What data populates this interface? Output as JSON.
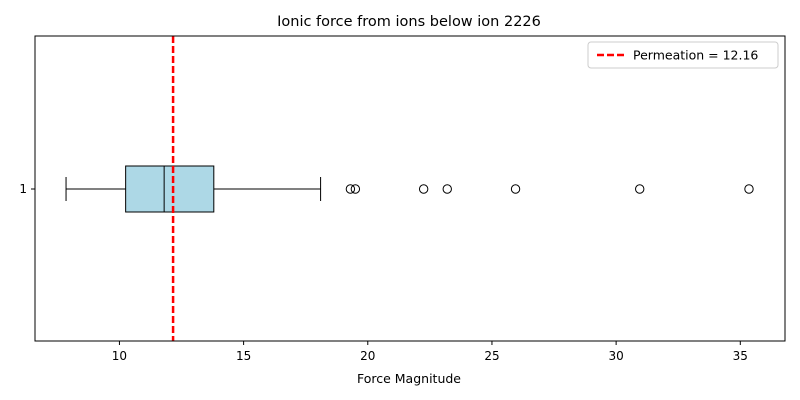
{
  "chart_data": {
    "type": "boxplot",
    "orientation": "horizontal",
    "title": "Ionic force from ions below ion 2226",
    "xlabel": "Force Magnitude",
    "ylabel": "",
    "xlim": [
      6.6,
      36.8
    ],
    "xticks": [
      10,
      15,
      20,
      25,
      30,
      35
    ],
    "ytick_labels": [
      "1"
    ],
    "grid": false,
    "legend_position": "top-right",
    "box": {
      "category": "1",
      "whisker_low": 7.85,
      "q1": 10.25,
      "median": 11.8,
      "q3": 13.8,
      "whisker_high": 18.1,
      "fliers": [
        19.3,
        19.5,
        22.25,
        23.2,
        25.95,
        30.95,
        35.35
      ],
      "fill_color": "#add8e6",
      "edge_color": "#000000"
    },
    "reference_line": {
      "label": "Permeation = 12.16",
      "value": 12.16,
      "color": "#ff0000",
      "style": "dashed"
    }
  }
}
